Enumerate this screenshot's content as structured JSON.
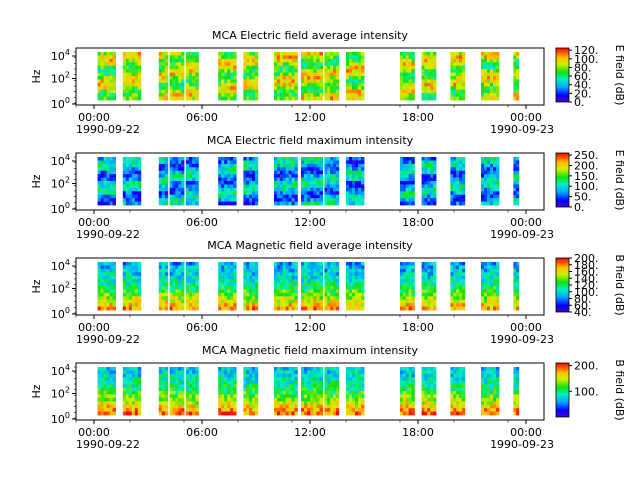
{
  "chart_data": [
    {
      "type": "heatmap",
      "title": "MCA  Electric field average intensity",
      "ylabel": "Hz",
      "yticks": [
        "10^0",
        "10^2",
        "10^4"
      ],
      "xticks": [
        "00:00",
        "06:00",
        "12:00",
        "18:00",
        "00:00"
      ],
      "date_start": "1990-09-22",
      "date_end": "1990-09-23",
      "colorbar_label": "E field (dB)",
      "colorbar_ticks": [
        "0.",
        "20.",
        "40.",
        "60.",
        "80.",
        "100.",
        "120."
      ],
      "colorbar_range": [
        0,
        125
      ],
      "x_range_hours": [
        -1,
        25
      ],
      "segments_hours": [
        [
          0.2,
          1.2
        ],
        [
          1.6,
          2.6
        ],
        [
          3.6,
          4.1
        ],
        [
          4.2,
          5.0
        ],
        [
          5.1,
          5.8
        ],
        [
          6.9,
          7.9
        ],
        [
          8.3,
          9.1
        ],
        [
          10.0,
          11.3
        ],
        [
          11.5,
          12.7
        ],
        [
          12.8,
          13.6
        ],
        [
          14.0,
          15.0
        ],
        [
          17.0,
          17.8
        ],
        [
          18.2,
          19.0
        ],
        [
          19.8,
          20.6
        ],
        [
          21.5,
          22.5
        ],
        [
          23.3,
          23.6
        ]
      ],
      "intensity_bias": 0.25
    },
    {
      "type": "heatmap",
      "title": "MCA  Electric field maximum intensity",
      "ylabel": "Hz",
      "yticks": [
        "10^0",
        "10^2",
        "10^4"
      ],
      "xticks": [
        "00:00",
        "06:00",
        "12:00",
        "18:00",
        "00:00"
      ],
      "date_start": "1990-09-22",
      "date_end": "1990-09-23",
      "colorbar_label": "E field (dB)",
      "colorbar_ticks": [
        "0.",
        "50.",
        "100.",
        "150.",
        "200.",
        "250."
      ],
      "colorbar_range": [
        0,
        260
      ],
      "x_range_hours": [
        -1,
        25
      ],
      "segments_hours": [
        [
          0.2,
          1.2
        ],
        [
          1.6,
          2.6
        ],
        [
          3.6,
          4.1
        ],
        [
          4.2,
          5.0
        ],
        [
          5.1,
          5.8
        ],
        [
          6.9,
          7.9
        ],
        [
          8.3,
          9.1
        ],
        [
          10.0,
          11.3
        ],
        [
          11.5,
          12.7
        ],
        [
          12.8,
          13.6
        ],
        [
          14.0,
          15.0
        ],
        [
          17.0,
          17.8
        ],
        [
          18.2,
          19.0
        ],
        [
          19.8,
          20.6
        ],
        [
          21.5,
          22.5
        ],
        [
          23.3,
          23.6
        ]
      ],
      "intensity_bias": -0.1
    },
    {
      "type": "heatmap",
      "title": "MCA  Magnetic field average intensity",
      "ylabel": "Hz",
      "yticks": [
        "10^0",
        "10^2",
        "10^4"
      ],
      "xticks": [
        "00:00",
        "06:00",
        "12:00",
        "18:00",
        "00:00"
      ],
      "date_start": "1990-09-22",
      "date_end": "1990-09-23",
      "colorbar_label": "B field (dB)",
      "colorbar_ticks": [
        "40.",
        "60.",
        "80.",
        "100.",
        "120.",
        "140.",
        "160.",
        "180.",
        "200."
      ],
      "colorbar_range": [
        40,
        200
      ],
      "x_range_hours": [
        -1,
        25
      ],
      "segments_hours": [
        [
          0.2,
          1.2
        ],
        [
          1.6,
          2.6
        ],
        [
          3.6,
          4.1
        ],
        [
          4.2,
          5.0
        ],
        [
          5.1,
          5.8
        ],
        [
          6.9,
          7.9
        ],
        [
          8.3,
          9.1
        ],
        [
          10.0,
          11.3
        ],
        [
          11.5,
          12.7
        ],
        [
          12.8,
          13.6
        ],
        [
          14.0,
          15.0
        ],
        [
          17.0,
          17.8
        ],
        [
          18.2,
          19.0
        ],
        [
          19.8,
          20.6
        ],
        [
          21.5,
          22.5
        ],
        [
          23.3,
          23.6
        ]
      ],
      "intensity_bias": 0.0
    },
    {
      "type": "heatmap",
      "title": "MCA  Magnetic field maximum intensity",
      "ylabel": "Hz",
      "yticks": [
        "10^0",
        "10^2",
        "10^4"
      ],
      "xticks": [
        "00:00",
        "06:00",
        "12:00",
        "18:00",
        "00:00"
      ],
      "date_start": "1990-09-22",
      "date_end": "1990-09-23",
      "colorbar_label": "B field (dB)",
      "colorbar_ticks": [
        "100.",
        "200."
      ],
      "colorbar_range": [
        0,
        210
      ],
      "x_range_hours": [
        -1,
        25
      ],
      "segments_hours": [
        [
          0.2,
          1.2
        ],
        [
          1.6,
          2.6
        ],
        [
          3.6,
          4.1
        ],
        [
          4.2,
          5.0
        ],
        [
          5.1,
          5.8
        ],
        [
          6.9,
          7.9
        ],
        [
          8.3,
          9.1
        ],
        [
          10.0,
          11.3
        ],
        [
          11.5,
          12.7
        ],
        [
          12.8,
          13.6
        ],
        [
          14.0,
          15.0
        ],
        [
          17.0,
          17.8
        ],
        [
          18.2,
          19.0
        ],
        [
          19.8,
          20.6
        ],
        [
          21.5,
          22.5
        ],
        [
          23.3,
          23.6
        ]
      ],
      "intensity_bias": 0.05
    }
  ]
}
